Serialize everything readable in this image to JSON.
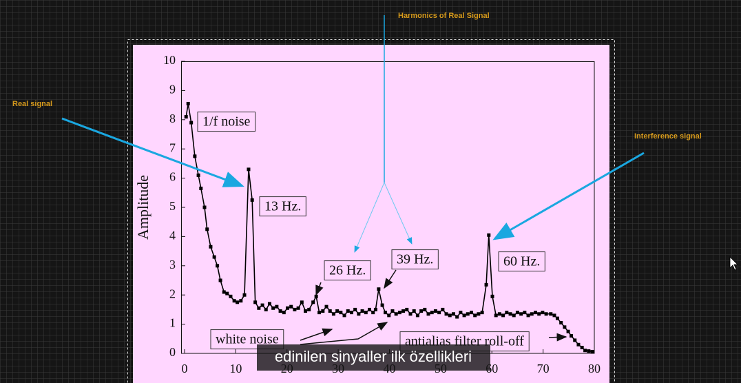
{
  "chart_data": {
    "type": "line",
    "ylabel": "Amplitude",
    "x": [
      0.3,
      0.7,
      1.3,
      2.0,
      2.7,
      3.2,
      3.9,
      4.4,
      5.1,
      5.8,
      6.4,
      7.0,
      7.7,
      8.3,
      9.0,
      9.7,
      10.3,
      11.0,
      11.7,
      12.5,
      13.2,
      13.8,
      14.5,
      15.2,
      15.9,
      16.6,
      17.3,
      18.0,
      18.7,
      19.4,
      20.1,
      20.8,
      21.5,
      22.2,
      22.9,
      23.6,
      24.3,
      25.1,
      25.7,
      26.3,
      27.0,
      27.7,
      28.4,
      29.1,
      29.8,
      30.5,
      31.2,
      31.9,
      32.6,
      33.3,
      34.0,
      34.7,
      35.4,
      36.1,
      36.8,
      37.3,
      37.9,
      38.6,
      39.2,
      39.9,
      40.6,
      41.3,
      42.0,
      42.7,
      43.4,
      44.1,
      44.8,
      45.5,
      46.2,
      46.9,
      47.6,
      48.3,
      49.0,
      49.7,
      50.4,
      51.1,
      51.8,
      52.5,
      53.2,
      53.9,
      54.6,
      55.3,
      56.0,
      56.7,
      57.4,
      58.1,
      58.9,
      59.4,
      60.1,
      60.8,
      61.5,
      62.2,
      62.9,
      63.6,
      64.3,
      65.0,
      65.7,
      66.4,
      67.1,
      67.8,
      68.5,
      69.2,
      69.9,
      70.6,
      71.5,
      72.2,
      72.8,
      73.5,
      74.2,
      74.9,
      75.5,
      76.2,
      76.9,
      77.6,
      78.2,
      78.9,
      79.6
    ],
    "values": [
      8.1,
      8.55,
      7.9,
      6.75,
      6.1,
      5.65,
      5.0,
      4.25,
      3.65,
      3.3,
      3.0,
      2.5,
      2.1,
      2.05,
      1.95,
      1.8,
      1.75,
      1.8,
      2.0,
      6.3,
      5.25,
      1.75,
      1.55,
      1.65,
      1.5,
      1.7,
      1.55,
      1.6,
      1.45,
      1.4,
      1.55,
      1.6,
      1.5,
      1.55,
      1.75,
      1.45,
      1.5,
      1.75,
      1.95,
      1.4,
      1.45,
      1.6,
      1.45,
      1.35,
      1.45,
      1.4,
      1.3,
      1.45,
      1.4,
      1.5,
      1.35,
      1.45,
      1.4,
      1.5,
      1.4,
      1.5,
      2.2,
      1.65,
      1.4,
      1.3,
      1.45,
      1.35,
      1.4,
      1.45,
      1.5,
      1.35,
      1.45,
      1.3,
      1.45,
      1.5,
      1.35,
      1.4,
      1.45,
      1.4,
      1.5,
      1.35,
      1.3,
      1.35,
      1.25,
      1.4,
      1.3,
      1.35,
      1.4,
      1.3,
      1.35,
      1.4,
      2.35,
      4.05,
      1.95,
      1.3,
      1.35,
      1.3,
      1.4,
      1.35,
      1.3,
      1.4,
      1.35,
      1.4,
      1.3,
      1.35,
      1.4,
      1.35,
      1.4,
      1.35,
      1.35,
      1.3,
      1.2,
      1.05,
      0.9,
      0.75,
      0.6,
      0.45,
      0.3,
      0.2,
      0.1,
      0.08,
      0.06
    ],
    "color": "#000000",
    "xlim": [
      0,
      80
    ],
    "xticks": [
      0,
      10,
      20,
      30,
      40,
      50,
      60,
      70,
      80
    ],
    "ylim": [
      0,
      10
    ],
    "yticks": [
      0,
      1,
      2,
      3,
      4,
      5,
      6,
      7,
      8,
      9,
      10
    ],
    "annotations": [
      "1/f noise",
      "13 Hz.",
      "26 Hz.",
      "39 Hz.",
      "60 Hz.",
      "white noise",
      "antialias filter roll-off"
    ],
    "callouts": [
      "Harmonics of Real Signal",
      "Real signal",
      "Interference signal"
    ],
    "caption": "edinilen sinyaller ilk özellikleri"
  }
}
